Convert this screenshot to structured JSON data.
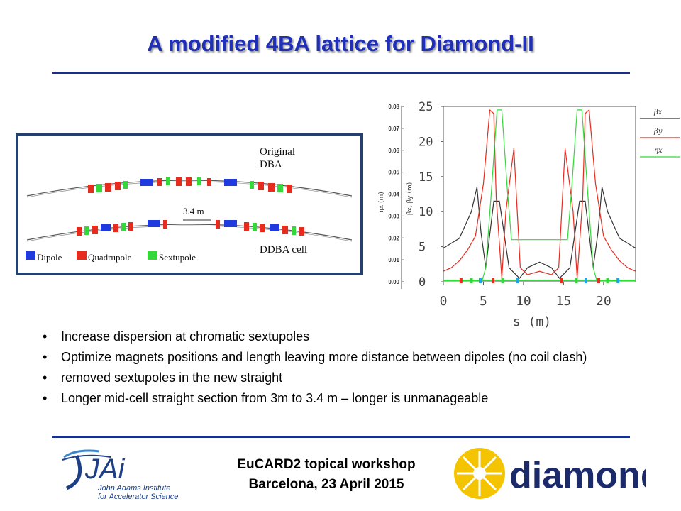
{
  "slide": {
    "title": "A modified 4BA lattice for Diamond-II"
  },
  "lattice_figure": {
    "labels": {
      "original_line1": "Original",
      "original_line2": "DBA",
      "distance": "3.4 m",
      "ddba": "DDBA cell"
    },
    "legend": [
      {
        "label": "Dipole",
        "color": "#1f3adf"
      },
      {
        "label": "Quadrupole",
        "color": "#e62b1f"
      },
      {
        "label": "Sextupole",
        "color": "#35d83a"
      }
    ]
  },
  "chart_data": {
    "type": "line",
    "xlabel": "s (m)",
    "x_ticks": [
      "0",
      "5",
      "10",
      "15",
      "20"
    ],
    "left_ylabel_eta": "ηx (m)",
    "left_ylabel_beta": "βx, βy (m)",
    "eta_ticks": [
      "0.08",
      "0.07",
      "0.06",
      "0.05",
      "0.04",
      "0.03",
      "0.02",
      "0.01",
      "0.00"
    ],
    "beta_ticks": [
      "25",
      "20",
      "15",
      "10",
      "5",
      "0"
    ],
    "xlim": [
      0,
      24
    ],
    "ylim": [
      0,
      25
    ],
    "series": [
      {
        "name": "βx",
        "color": "#333333",
        "x": [
          0,
          2,
          3.5,
          4.2,
          4.7,
          5.3,
          6.3,
          7.0,
          8.2,
          9.5,
          10.5,
          12,
          13.5,
          14.5,
          15.8,
          17.0,
          17.7,
          18.7,
          19.3,
          19.8,
          20.5,
          22,
          24
        ],
        "y": [
          4.8,
          6.2,
          10,
          13.5,
          7,
          2,
          11.5,
          11.5,
          2,
          0.5,
          2,
          2.8,
          2,
          0.5,
          2,
          11.5,
          11.5,
          2,
          7,
          13.5,
          10,
          6.2,
          4.8
        ]
      },
      {
        "name": "βy",
        "color": "#e62b1f",
        "x": [
          0,
          1,
          2,
          3,
          4.0,
          5.0,
          5.8,
          6.3,
          6.6,
          7.3,
          7.8,
          8.8,
          9.6,
          10.5,
          12,
          13.5,
          14.4,
          15.2,
          16.2,
          16.7,
          17.4,
          17.7,
          18.2,
          19.0,
          20.0,
          21,
          22,
          23,
          24
        ],
        "y": [
          1.5,
          2,
          3,
          4.5,
          6.5,
          14,
          24.5,
          24,
          12,
          0.5,
          10,
          19,
          2,
          1,
          1.5,
          1,
          2,
          19,
          10,
          0.5,
          12,
          24,
          24.5,
          14,
          6.5,
          4.5,
          3,
          2,
          1.5
        ]
      },
      {
        "name": "ηx",
        "color": "#35d83a",
        "x": [
          0,
          4.8,
          5.3,
          6.0,
          6.7,
          7.3,
          8.0,
          8.5,
          9.5,
          14.5,
          15.5,
          16.0,
          16.7,
          17.3,
          18.0,
          18.7,
          19.2,
          24
        ],
        "y": [
          0,
          0,
          2,
          13,
          24.5,
          24.5,
          13,
          6,
          6,
          6,
          6,
          13,
          24.5,
          24.5,
          13,
          2,
          0,
          0
        ]
      }
    ]
  },
  "bullets": [
    "Increase dispersion at chromatic sextupoles",
    "Optimize magnets positions and length leaving more distance between dipoles (no coil clash)",
    "removed sextupoles in the new straight",
    "Longer mid-cell straight section from 3m to 3.4 m – longer is unmanageable"
  ],
  "footer": {
    "line1": "EuCARD2 topical workshop",
    "line2": "Barcelona, 23 April 2015"
  },
  "logos": {
    "jai": {
      "mark": "JAi",
      "line1": "John Adams Institute",
      "line2": "for Accelerator Science"
    },
    "diamond": {
      "wordmark": "diamond",
      "color_text": "#1b2a6b",
      "color_star": "#f5c400"
    }
  }
}
